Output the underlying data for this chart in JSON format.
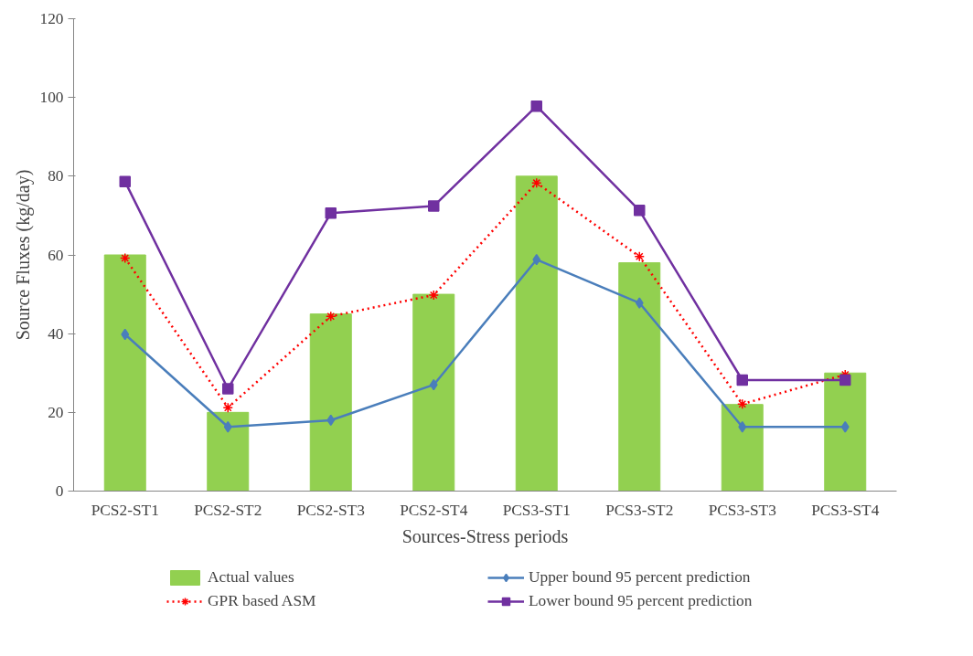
{
  "chart_data": {
    "type": "bar",
    "xlabel": "Sources-Stress periods",
    "ylabel": "Source Fluxes (kg/day)",
    "categories": [
      "PCS2-ST1",
      "PCS2-ST2",
      "PCS2-ST3",
      "PCS2-ST4",
      "PCS3-ST1",
      "PCS3-ST2",
      "PCS3-ST3",
      "PCS3-ST4"
    ],
    "ylim": [
      0,
      120
    ],
    "yticks": [
      0,
      20,
      40,
      60,
      80,
      100,
      120
    ],
    "grid": false,
    "legend": "bottom",
    "series": [
      {
        "name": "Actual values",
        "color": "#92d050",
        "values": [
          60,
          20,
          45,
          50,
          80,
          58,
          22,
          30
        ]
      },
      {
        "name": "Upper bound 95 percent prediction",
        "type": "line",
        "color": "#4a7ebb",
        "marker": "diamond",
        "line_style": "solid",
        "values": [
          39.8,
          16.3,
          18,
          27,
          58.8,
          47.8,
          16.3,
          16.3
        ]
      },
      {
        "name": "GPR based ASM",
        "type": "line",
        "color": "#ff0000",
        "marker": "cross",
        "line_style": "dotted",
        "values": [
          59.2,
          21.2,
          44.4,
          49.8,
          78.3,
          59.6,
          22.1,
          29.6
        ]
      },
      {
        "name": "Lower bound 95 percent prediction",
        "type": "line",
        "color": "#7030a0",
        "marker": "square",
        "line_style": "solid",
        "values": [
          78.6,
          26,
          70.6,
          72.4,
          97.8,
          71.3,
          28.2,
          28.2
        ]
      }
    ]
  }
}
